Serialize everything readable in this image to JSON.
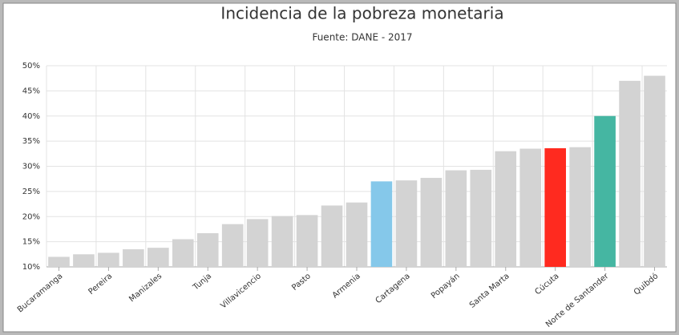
{
  "chart_data": {
    "type": "bar",
    "title": "Incidencia de la pobreza monetaria",
    "subtitle": "Fuente: DANE - 2017",
    "categories": [
      "Bucaramanga",
      null,
      "Pereira",
      null,
      "Manizales",
      null,
      "Tunja",
      null,
      "Villavicencio",
      null,
      "Pasto",
      null,
      "Armenia",
      null,
      "Cartagena",
      null,
      "Popayán",
      null,
      "Santa Marta",
      null,
      "Cúcuta",
      null,
      "Norte de Santander",
      null,
      "Quibdó"
    ],
    "values": [
      12,
      12.5,
      12.8,
      13.5,
      13.8,
      15.5,
      16.7,
      18.5,
      19.5,
      20.1,
      20.3,
      22.2,
      22.8,
      27,
      27.2,
      27.7,
      29.2,
      29.3,
      33,
      33.5,
      33.6,
      33.8,
      40,
      47,
      48
    ],
    "colors": [
      "#d3d3d3",
      "#d3d3d3",
      "#d3d3d3",
      "#d3d3d3",
      "#d3d3d3",
      "#d3d3d3",
      "#d3d3d3",
      "#d3d3d3",
      "#d3d3d3",
      "#d3d3d3",
      "#d3d3d3",
      "#d3d3d3",
      "#d3d3d3",
      "#85c8ea",
      "#d3d3d3",
      "#d3d3d3",
      "#d3d3d3",
      "#d3d3d3",
      "#d3d3d3",
      "#d3d3d3",
      "#ff2a1f",
      "#d3d3d3",
      "#45b6a2",
      "#d3d3d3",
      "#d3d3d3"
    ],
    "ylim": [
      10,
      50
    ],
    "yticks": [
      {
        "value": 10,
        "label": "10%"
      },
      {
        "value": 15,
        "label": "15%"
      },
      {
        "value": 20,
        "label": "20%"
      },
      {
        "value": 25,
        "label": "25%"
      },
      {
        "value": 30,
        "label": "30%"
      },
      {
        "value": 35,
        "label": "35%"
      },
      {
        "value": 40,
        "label": "40%"
      },
      {
        "value": 45,
        "label": "45%"
      },
      {
        "value": 50,
        "label": "50%"
      }
    ],
    "grid": true
  }
}
